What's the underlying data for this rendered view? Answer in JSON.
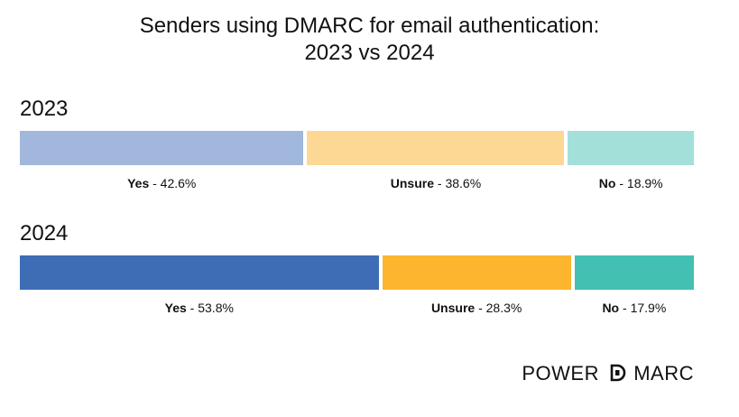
{
  "chart_data": {
    "type": "bar",
    "stacked": true,
    "orientation": "horizontal",
    "title": "Senders using DMARC for email authentication:",
    "subtitle": "2023 vs 2024",
    "categories": [
      "2023",
      "2024"
    ],
    "series": [
      {
        "name": "Yes",
        "values": [
          42.6,
          53.8
        ],
        "colors": [
          "#a1b7dc",
          "#3e6db5"
        ]
      },
      {
        "name": "Unsure",
        "values": [
          38.6,
          28.3
        ],
        "colors": [
          "#fdd895",
          "#fdb42e"
        ]
      },
      {
        "name": "No",
        "values": [
          18.9,
          17.9
        ],
        "colors": [
          "#a3e0da",
          "#43c0b2"
        ]
      }
    ],
    "separator": " - ",
    "unit": "%",
    "grid": false,
    "legend": "none"
  },
  "branding": {
    "logo_left": "POWER",
    "logo_right": "MARC"
  }
}
